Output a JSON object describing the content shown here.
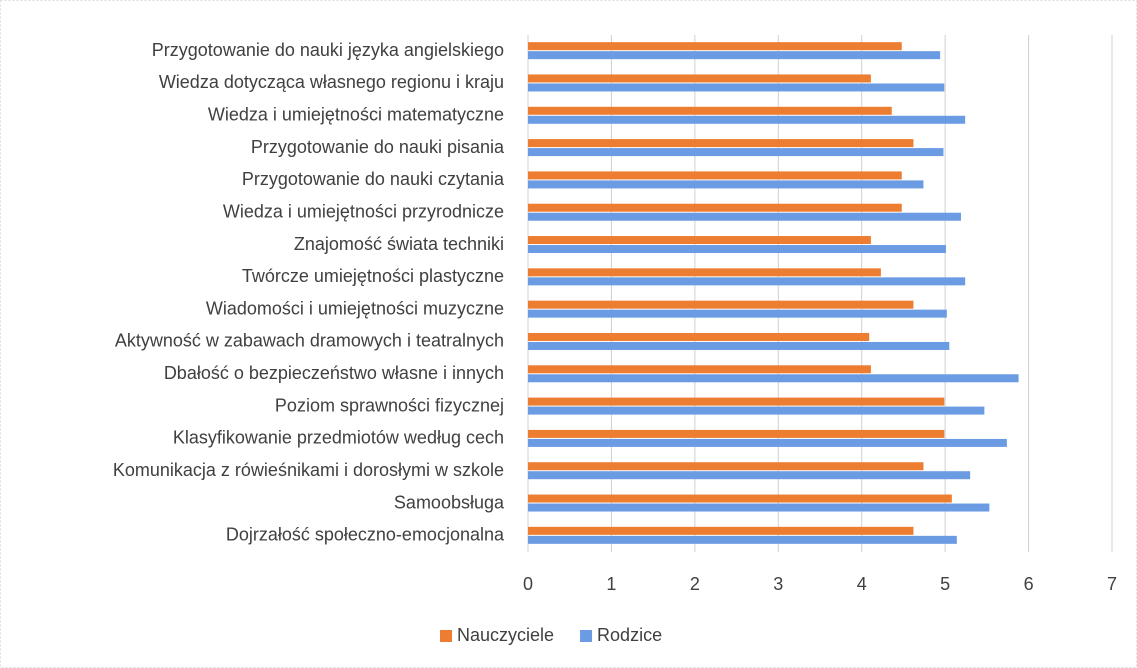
{
  "chart_data": {
    "type": "hbar",
    "categories": [
      "Przygotowanie do nauki języka angielskiego",
      "Wiedza dotycząca własnego regionu i kraju",
      "Wiedza i umiejętności matematyczne",
      "Przygotowanie do nauki pisania",
      "Przygotowanie do nauki czytania",
      "Wiedza i umiejętności przyrodnicze",
      "Znajomość świata techniki",
      "Twórcze umiejętności plastyczne",
      "Wiadomości i umiejętności muzyczne",
      "Aktywność  w zabawach dramowych i teatralnych",
      "Dbałość o bezpieczeństwo własne i innych",
      "Poziom sprawności fizycznej",
      "Klasyfikowanie przedmiotów według cech",
      "Komunikacja z rówieśnikami i dorosłymi w szkole",
      "Samoobsługa",
      "Dojrzałość społeczno-emocjonalna"
    ],
    "series": [
      {
        "name": "Nauczyciele",
        "color": "#ed7d31",
        "values": [
          4.48,
          4.11,
          4.36,
          4.62,
          4.48,
          4.48,
          4.11,
          4.23,
          4.62,
          4.09,
          4.11,
          4.99,
          4.99,
          4.74,
          5.08,
          4.62
        ]
      },
      {
        "name": "Rodzice",
        "color": "#6b9be3",
        "values": [
          4.94,
          4.99,
          5.24,
          4.98,
          4.74,
          5.19,
          5.01,
          5.24,
          5.02,
          5.05,
          5.88,
          5.47,
          5.74,
          5.3,
          5.53,
          5.14
        ]
      }
    ],
    "xlim": [
      0,
      7
    ],
    "xticks": [
      0,
      1,
      2,
      3,
      4,
      5,
      6,
      7
    ],
    "grid": true,
    "legend": "bottom"
  }
}
